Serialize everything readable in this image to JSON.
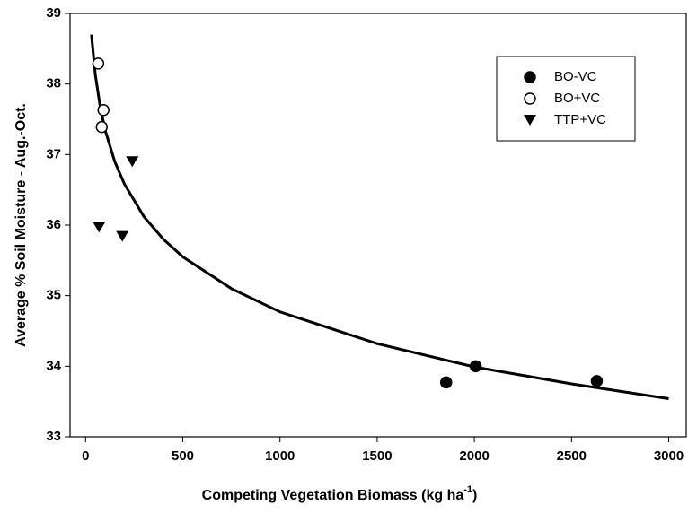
{
  "chart_data": {
    "type": "scatter",
    "y_label": "Average % Soil Moisture - Aug.-Oct.",
    "x_label": {
      "text": "Competing Vegetation Biomass (kg ha",
      "superscript": "-1",
      "end": ")"
    },
    "xlim": [
      -80,
      3090
    ],
    "ylim": [
      33,
      39
    ],
    "xticks": [
      0,
      500,
      1000,
      1500,
      2000,
      2500,
      3000
    ],
    "yticks": [
      33,
      34,
      35,
      36,
      37,
      38,
      39
    ],
    "legend": "upper right",
    "series": [
      {
        "name": "BO-VC",
        "marker": "filled-circle",
        "color": "#000000",
        "x": [
          1855,
          2007,
          2630
        ],
        "values": [
          33.77,
          34.0,
          33.79
        ]
      },
      {
        "name": "BO+VC",
        "marker": "open-circle",
        "color": "#000000",
        "x": [
          65,
          92,
          83
        ],
        "values": [
          38.29,
          37.63,
          37.39
        ]
      },
      {
        "name": "TTP+VC",
        "marker": "triangle-down",
        "color": "#000000",
        "x": [
          69,
          189,
          240
        ],
        "values": [
          35.97,
          35.84,
          36.9
        ]
      }
    ],
    "fit": {
      "color": "#000000",
      "x": [
        30,
        50,
        75,
        100,
        150,
        200,
        300,
        400,
        500,
        750,
        1000,
        1500,
        2000,
        2500,
        3000
      ],
      "values": [
        38.7,
        38.13,
        37.68,
        37.35,
        36.9,
        36.58,
        36.12,
        35.8,
        35.55,
        35.1,
        34.77,
        34.32,
        33.99,
        33.75,
        33.54
      ]
    }
  }
}
